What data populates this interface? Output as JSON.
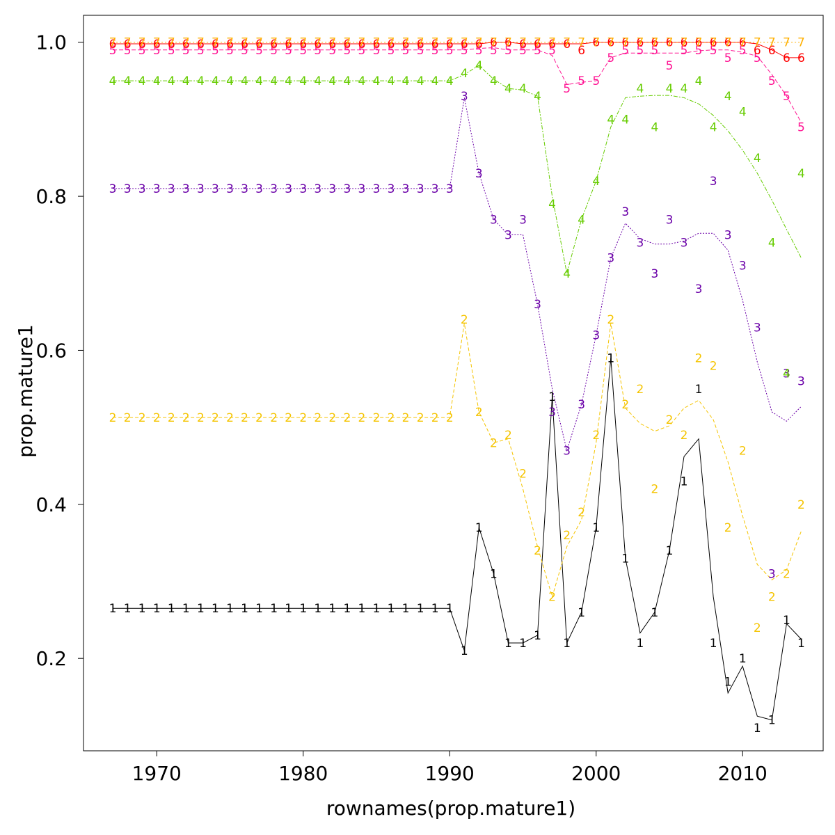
{
  "chart_data": {
    "type": "line",
    "title": "",
    "xlabel": "rownames(prop.mature1)",
    "ylabel": "prop.mature1",
    "xlim": [
      1965,
      2015.5
    ],
    "ylim": [
      0.08,
      1.035
    ],
    "grid": false,
    "x_ticks": [
      1970,
      1980,
      1990,
      2000,
      2010
    ],
    "y_ticks": [
      0.2,
      0.4,
      0.6,
      0.8,
      1.0
    ],
    "x_tick_labels": [
      "1970",
      "1980",
      "1990",
      "2000",
      "2010"
    ],
    "y_tick_labels": [
      "0.2",
      "0.4",
      "0.6",
      "0.8",
      "1.0"
    ],
    "x": [
      1967,
      1968,
      1969,
      1970,
      1971,
      1972,
      1973,
      1974,
      1975,
      1976,
      1977,
      1978,
      1979,
      1980,
      1981,
      1982,
      1983,
      1984,
      1985,
      1986,
      1987,
      1988,
      1989,
      1990,
      1991,
      1992,
      1993,
      1994,
      1995,
      1996,
      1997,
      1998,
      1999,
      2000,
      2001,
      2002,
      2003,
      2004,
      2005,
      2006,
      2007,
      2008,
      2009,
      2010,
      2011,
      2012,
      2013,
      2014
    ],
    "series": [
      {
        "name": "1",
        "color": "#000000",
        "dash": "",
        "line_kind": "connect",
        "values": [
          0.265,
          0.265,
          0.265,
          0.265,
          0.265,
          0.265,
          0.265,
          0.265,
          0.265,
          0.265,
          0.265,
          0.265,
          0.265,
          0.265,
          0.265,
          0.265,
          0.265,
          0.265,
          0.265,
          0.265,
          0.265,
          0.265,
          0.265,
          0.265,
          0.21,
          0.37,
          0.31,
          0.22,
          0.22,
          0.23,
          0.54,
          0.22,
          0.26,
          0.37,
          0.59,
          0.33,
          0.22,
          0.26,
          0.34,
          0.43,
          0.55,
          0.22,
          0.17,
          0.2,
          0.11,
          0.12,
          0.25,
          0.22
        ],
        "line": [
          0.265,
          0.265,
          0.265,
          0.265,
          0.265,
          0.265,
          0.265,
          0.265,
          0.265,
          0.265,
          0.265,
          0.265,
          0.265,
          0.265,
          0.265,
          0.265,
          0.265,
          0.265,
          0.265,
          0.265,
          0.265,
          0.265,
          0.265,
          0.265,
          0.21,
          0.37,
          0.31,
          0.22,
          0.22,
          0.23,
          0.54,
          0.22,
          0.26,
          0.37,
          0.59,
          0.33,
          0.233,
          0.26,
          0.34,
          0.462,
          0.485,
          0.28,
          0.155,
          0.19,
          0.125,
          0.12,
          0.245,
          0.225
        ]
      },
      {
        "name": "2",
        "color": "#f5c400",
        "dash": "5,3",
        "line_kind": "smooth",
        "values": [
          0.513,
          0.513,
          0.513,
          0.513,
          0.513,
          0.513,
          0.513,
          0.513,
          0.513,
          0.513,
          0.513,
          0.513,
          0.513,
          0.513,
          0.513,
          0.513,
          0.513,
          0.513,
          0.513,
          0.513,
          0.513,
          0.513,
          0.513,
          0.513,
          0.64,
          0.52,
          0.48,
          0.49,
          0.44,
          0.34,
          0.28,
          0.36,
          0.39,
          0.49,
          0.64,
          0.53,
          0.55,
          0.42,
          0.51,
          0.49,
          0.59,
          0.58,
          0.37,
          0.47,
          0.24,
          0.28,
          0.31,
          0.4
        ],
        "line": [
          0.513,
          0.513,
          0.513,
          0.513,
          0.513,
          0.513,
          0.513,
          0.513,
          0.513,
          0.513,
          0.513,
          0.513,
          0.513,
          0.513,
          0.513,
          0.513,
          0.513,
          0.513,
          0.513,
          0.513,
          0.513,
          0.513,
          0.513,
          0.513,
          0.635,
          0.52,
          0.48,
          0.485,
          0.42,
          0.345,
          0.28,
          0.345,
          0.38,
          0.48,
          0.635,
          0.525,
          0.505,
          0.495,
          0.502,
          0.525,
          0.535,
          0.51,
          0.455,
          0.385,
          0.322,
          0.302,
          0.315,
          0.365
        ]
      },
      {
        "name": "3",
        "color": "#6a00a8",
        "dash": "2,2",
        "line_kind": "smooth",
        "values": [
          0.81,
          0.81,
          0.81,
          0.81,
          0.81,
          0.81,
          0.81,
          0.81,
          0.81,
          0.81,
          0.81,
          0.81,
          0.81,
          0.81,
          0.81,
          0.81,
          0.81,
          0.81,
          0.81,
          0.81,
          0.81,
          0.81,
          0.81,
          0.81,
          0.93,
          0.83,
          0.77,
          0.75,
          0.77,
          0.66,
          0.52,
          0.47,
          0.53,
          0.62,
          0.72,
          0.78,
          0.74,
          0.7,
          0.77,
          0.74,
          0.68,
          0.82,
          0.75,
          0.71,
          0.63,
          0.31,
          0.57,
          0.56
        ],
        "line": [
          0.81,
          0.81,
          0.81,
          0.81,
          0.81,
          0.81,
          0.81,
          0.81,
          0.81,
          0.81,
          0.81,
          0.81,
          0.81,
          0.81,
          0.81,
          0.81,
          0.81,
          0.81,
          0.81,
          0.81,
          0.81,
          0.81,
          0.81,
          0.81,
          0.928,
          0.83,
          0.77,
          0.75,
          0.75,
          0.66,
          0.55,
          0.47,
          0.53,
          0.62,
          0.72,
          0.765,
          0.745,
          0.738,
          0.738,
          0.742,
          0.752,
          0.752,
          0.73,
          0.665,
          0.585,
          0.52,
          0.508,
          0.527
        ]
      },
      {
        "name": "4",
        "color": "#66cc00",
        "dash": "6,2,2,2",
        "line_kind": "smooth",
        "values": [
          0.95,
          0.95,
          0.95,
          0.95,
          0.95,
          0.95,
          0.95,
          0.95,
          0.95,
          0.95,
          0.95,
          0.95,
          0.95,
          0.95,
          0.95,
          0.95,
          0.95,
          0.95,
          0.95,
          0.95,
          0.95,
          0.95,
          0.95,
          0.95,
          0.96,
          0.97,
          0.95,
          0.94,
          0.94,
          0.93,
          0.79,
          0.7,
          0.77,
          0.82,
          0.9,
          0.9,
          0.94,
          0.89,
          0.94,
          0.94,
          0.95,
          0.89,
          0.93,
          0.91,
          0.85,
          0.74,
          0.57,
          0.83
        ],
        "line": [
          0.95,
          0.95,
          0.95,
          0.95,
          0.95,
          0.95,
          0.95,
          0.95,
          0.95,
          0.95,
          0.95,
          0.95,
          0.95,
          0.95,
          0.95,
          0.95,
          0.95,
          0.95,
          0.95,
          0.95,
          0.95,
          0.95,
          0.95,
          0.95,
          0.958,
          0.97,
          0.952,
          0.94,
          0.938,
          0.93,
          0.8,
          0.7,
          0.77,
          0.82,
          0.89,
          0.928,
          0.93,
          0.931,
          0.931,
          0.928,
          0.92,
          0.905,
          0.885,
          0.86,
          0.83,
          0.795,
          0.757,
          0.72
        ]
      },
      {
        "name": "5",
        "color": "#ff1493",
        "dash": "6,3",
        "line_kind": "smooth",
        "values": [
          0.99,
          0.99,
          0.99,
          0.99,
          0.99,
          0.99,
          0.99,
          0.99,
          0.99,
          0.99,
          0.99,
          0.99,
          0.99,
          0.99,
          0.99,
          0.99,
          0.99,
          0.99,
          0.99,
          0.99,
          0.99,
          0.99,
          0.99,
          0.99,
          0.99,
          0.99,
          0.99,
          0.99,
          0.99,
          0.99,
          0.99,
          0.94,
          0.95,
          0.95,
          0.98,
          0.99,
          0.99,
          0.99,
          0.97,
          0.99,
          0.99,
          0.99,
          0.98,
          0.99,
          0.98,
          0.95,
          0.93,
          0.89
        ],
        "line": [
          0.99,
          0.99,
          0.99,
          0.99,
          0.99,
          0.99,
          0.99,
          0.99,
          0.99,
          0.99,
          0.99,
          0.99,
          0.99,
          0.99,
          0.99,
          0.99,
          0.99,
          0.99,
          0.99,
          0.99,
          0.99,
          0.99,
          0.99,
          0.99,
          0.99,
          0.992,
          0.993,
          0.99,
          0.99,
          0.99,
          0.983,
          0.945,
          0.948,
          0.95,
          0.98,
          0.986,
          0.986,
          0.986,
          0.986,
          0.986,
          0.989,
          0.99,
          0.99,
          0.987,
          0.982,
          0.958,
          0.93,
          0.896
        ]
      },
      {
        "name": "6",
        "color": "#ff0000",
        "dash": "",
        "line_kind": "connect",
        "values": [
          0.998,
          0.998,
          0.998,
          0.998,
          0.998,
          0.998,
          0.998,
          0.998,
          0.998,
          0.998,
          0.998,
          0.998,
          0.998,
          0.998,
          0.998,
          0.998,
          0.998,
          0.998,
          0.998,
          0.998,
          0.998,
          0.998,
          0.998,
          0.998,
          0.998,
          0.998,
          1.0,
          1.0,
          0.998,
          0.998,
          0.998,
          0.998,
          0.99,
          1.0,
          1.0,
          1.0,
          1.0,
          1.0,
          1.0,
          1.0,
          1.0,
          1.0,
          1.0,
          1.0,
          0.99,
          0.99,
          0.98,
          0.98
        ],
        "line": [
          0.998,
          0.998,
          0.998,
          0.998,
          0.998,
          0.998,
          0.998,
          0.998,
          0.998,
          0.998,
          0.998,
          0.998,
          0.998,
          0.998,
          0.998,
          0.998,
          0.998,
          0.998,
          0.998,
          0.998,
          0.998,
          0.998,
          0.998,
          0.998,
          0.998,
          0.998,
          1.0,
          1.0,
          0.998,
          0.998,
          0.998,
          0.998,
          0.998,
          1.0,
          1.0,
          1.0,
          1.0,
          1.0,
          1.0,
          1.0,
          1.0,
          1.0,
          1.0,
          1.0,
          0.998,
          0.99,
          0.98,
          0.98
        ]
      },
      {
        "name": "7",
        "color": "#ffb000",
        "dash": "2,3",
        "line_kind": "connect",
        "values": [
          1.0,
          1.0,
          1.0,
          1.0,
          1.0,
          1.0,
          1.0,
          1.0,
          1.0,
          1.0,
          1.0,
          1.0,
          1.0,
          1.0,
          1.0,
          1.0,
          1.0,
          1.0,
          1.0,
          1.0,
          1.0,
          1.0,
          1.0,
          1.0,
          1.0,
          1.0,
          1.0,
          1.0,
          1.0,
          1.0,
          1.0,
          1.0,
          1.0,
          1.0,
          1.0,
          1.0,
          1.0,
          1.0,
          1.0,
          1.0,
          1.0,
          1.0,
          1.0,
          1.0,
          1.0,
          1.0,
          1.0,
          1.0
        ],
        "line": [
          1.0,
          1.0,
          1.0,
          1.0,
          1.0,
          1.0,
          1.0,
          1.0,
          1.0,
          1.0,
          1.0,
          1.0,
          1.0,
          1.0,
          1.0,
          1.0,
          1.0,
          1.0,
          1.0,
          1.0,
          1.0,
          1.0,
          1.0,
          1.0,
          1.0,
          1.0,
          1.0,
          1.0,
          1.0,
          1.0,
          1.0,
          1.0,
          1.0,
          1.0,
          1.0,
          1.0,
          1.0,
          1.0,
          1.0,
          1.0,
          1.0,
          1.0,
          1.0,
          1.0,
          1.0,
          1.0,
          1.0,
          1.0
        ]
      }
    ]
  }
}
